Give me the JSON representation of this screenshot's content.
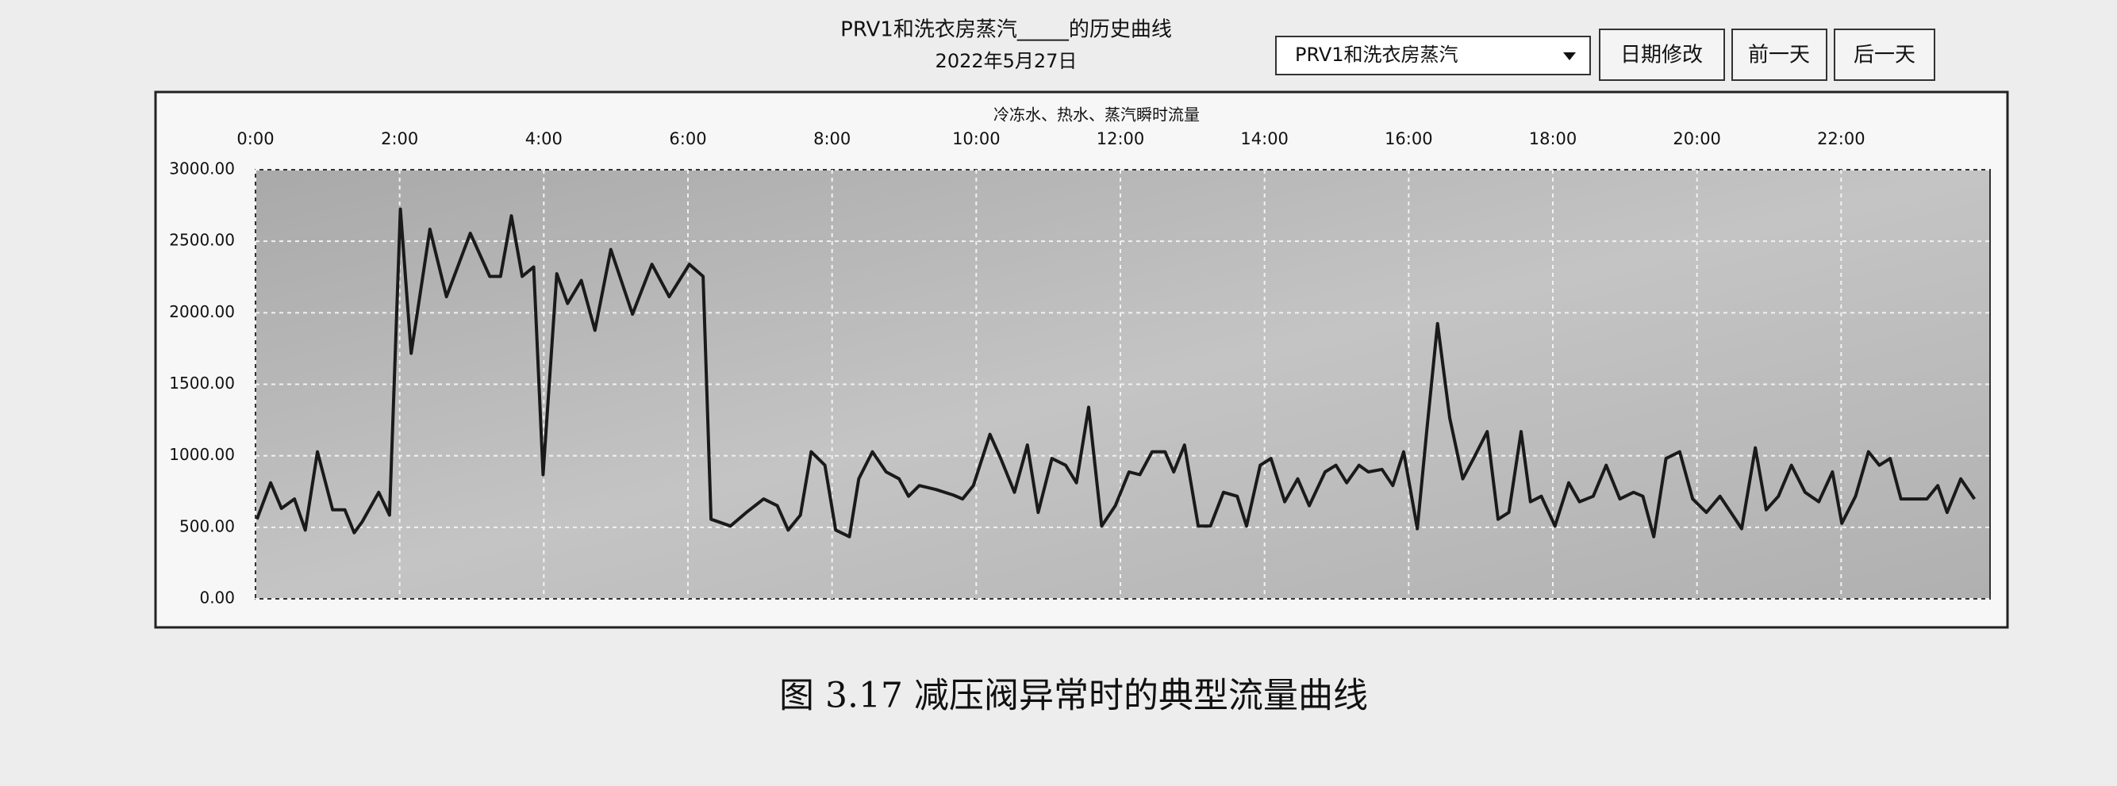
{
  "controls": {
    "selector": "PRV1和洗衣房蒸汽",
    "buttons": [
      "日期修改",
      "前一天",
      "后一天"
    ]
  },
  "caption": "图 3.17 减压阀异常时的典型流量曲线",
  "chart_data": {
    "type": "line",
    "title": "PRV1和洗衣房蒸汽_____的历史曲线",
    "subtitle": "2022年5月27日",
    "annotation": "冷冻水、热水、蒸汽瞬时流量",
    "color": "#1a1a1a",
    "grid": true,
    "xlim": [
      0,
      24
    ],
    "xticks": [
      {
        "value": 0,
        "label": "0:00"
      },
      {
        "value": 2,
        "label": "2:00"
      },
      {
        "value": 4,
        "label": "4:00"
      },
      {
        "value": 6,
        "label": "6:00"
      },
      {
        "value": 8,
        "label": "8:00"
      },
      {
        "value": 10,
        "label": "10:00"
      },
      {
        "value": 12,
        "label": "12:00"
      },
      {
        "value": 14,
        "label": "14:00"
      },
      {
        "value": 16,
        "label": "16:00"
      },
      {
        "value": 18,
        "label": "18:00"
      },
      {
        "value": 20,
        "label": "20:00"
      },
      {
        "value": 22,
        "label": "22:00"
      }
    ],
    "ylim": [
      0,
      3000
    ],
    "yticks": [
      {
        "value": 0,
        "label": "0.00"
      },
      {
        "value": 500,
        "label": "500.00"
      },
      {
        "value": 1000,
        "label": "1000.00"
      },
      {
        "value": 1500,
        "label": "1500.00"
      },
      {
        "value": 2000,
        "label": "2000.00"
      },
      {
        "value": 2500,
        "label": "2500.00"
      },
      {
        "value": 3000,
        "label": "3000.00"
      }
    ],
    "x": [
      0.02,
      0.21,
      0.36,
      0.54,
      0.69,
      0.86,
      1.07,
      1.24,
      1.37,
      1.48,
      1.71,
      1.86,
      2.01,
      2.16,
      2.42,
      2.65,
      2.98,
      3.25,
      3.4,
      3.55,
      3.7,
      3.86,
      3.99,
      4.18,
      4.33,
      4.52,
      4.71,
      4.93,
      5.23,
      5.5,
      5.74,
      6.02,
      6.21,
      6.32,
      6.59,
      6.81,
      7.05,
      7.24,
      7.39,
      7.56,
      7.71,
      7.9,
      8.05,
      8.24,
      8.37,
      8.56,
      8.75,
      8.93,
      9.06,
      9.21,
      9.44,
      9.68,
      9.81,
      9.96,
      10.19,
      10.34,
      10.53,
      10.71,
      10.86,
      11.05,
      11.24,
      11.39,
      11.56,
      11.74,
      11.93,
      12.12,
      12.27,
      12.44,
      12.62,
      12.74,
      12.89,
      13.08,
      13.25,
      13.43,
      13.62,
      13.75,
      13.94,
      14.09,
      14.28,
      14.46,
      14.62,
      14.84,
      14.99,
      15.14,
      15.31,
      15.44,
      15.63,
      15.78,
      15.93,
      16.12,
      16.25,
      16.4,
      16.57,
      16.75,
      16.9,
      17.09,
      17.24,
      17.39,
      17.56,
      17.69,
      17.84,
      18.03,
      18.22,
      18.37,
      18.56,
      18.74,
      18.93,
      19.12,
      19.25,
      19.4,
      19.57,
      19.76,
      19.94,
      20.13,
      20.32,
      20.47,
      20.62,
      20.81,
      20.96,
      21.13,
      21.31,
      21.5,
      21.69,
      21.88,
      22.01,
      22.2,
      22.38,
      22.53,
      22.68,
      22.83,
      23.0,
      23.19,
      23.34,
      23.47,
      23.66,
      23.85
    ],
    "values": [
      556,
      811,
      632,
      698,
      481,
      1028,
      622,
      622,
      462,
      538,
      745,
      585,
      2725,
      1716,
      2584,
      2112,
      2556,
      2254,
      2254,
      2678,
      2254,
      2320,
      868,
      2273,
      2065,
      2226,
      1877,
      2442,
      1990,
      2339,
      2112,
      2339,
      2254,
      556,
      509,
      604,
      698,
      651,
      481,
      585,
      1028,
      934,
      481,
      434,
      839,
      1028,
      887,
      839,
      717,
      792,
      764,
      726,
      698,
      792,
      1150,
      981,
      745,
      1075,
      604,
      981,
      934,
      811,
      1339,
      509,
      651,
      887,
      868,
      1028,
      1028,
      887,
      1075,
      509,
      509,
      745,
      717,
      509,
      934,
      981,
      679,
      839,
      651,
      887,
      934,
      811,
      934,
      887,
      905,
      792,
      1028,
      490,
      1169,
      1924,
      1263,
      839,
      981,
      1169,
      556,
      604,
      1169,
      679,
      717,
      509,
      811,
      679,
      717,
      934,
      698,
      745,
      717,
      434,
      981,
      1028,
      698,
      604,
      717,
      604,
      490,
      1056,
      622,
      717,
      934,
      745,
      679,
      887,
      528,
      717,
      1028,
      934,
      981,
      698,
      698,
      698,
      792,
      604,
      839,
      698
    ]
  }
}
